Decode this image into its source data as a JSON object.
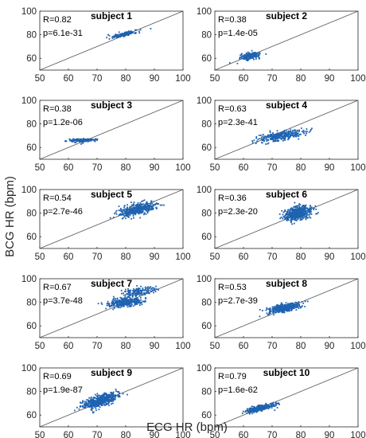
{
  "figure": {
    "xlabel": "ECG HR (bpm)",
    "ylabel": "BCG HR (bpm)",
    "xlim": [
      50,
      100
    ],
    "ylim": [
      50,
      100
    ],
    "xticks": [
      50,
      60,
      70,
      80,
      90,
      100
    ],
    "yticks": [
      60,
      80,
      100
    ],
    "marker_color": "#1f63b0",
    "line_color": "#555555"
  },
  "chart_data": [
    {
      "type": "scatter",
      "title": "subject 1",
      "r_text": "R=0.82",
      "p_text": "p=6.1e-31",
      "clusters": [
        {
          "cx": 79,
          "cy": 80,
          "sx": 2.5,
          "sy": 1.5,
          "r": 0.82,
          "n": 160
        }
      ],
      "identity_line": true
    },
    {
      "type": "scatter",
      "title": "subject 2",
      "r_text": "R=0.38",
      "p_text": "p=1.4e-05",
      "clusters": [
        {
          "cx": 62.5,
          "cy": 62,
          "sx": 1.7,
          "sy": 1.5,
          "r": 0.38,
          "n": 180
        }
      ],
      "identity_line": true
    },
    {
      "type": "scatter",
      "title": "subject 3",
      "r_text": "R=0.38",
      "p_text": "p=1.2e-06",
      "clusters": [
        {
          "cx": 65,
          "cy": 66,
          "sx": 2.5,
          "sy": 0.8,
          "r": 0.38,
          "n": 160
        }
      ],
      "identity_line": true
    },
    {
      "type": "scatter",
      "title": "subject 4",
      "r_text": "R=0.63",
      "p_text": "p=2.3e-41",
      "clusters": [
        {
          "cx": 73,
          "cy": 70,
          "sx": 4,
          "sy": 2.5,
          "r": 0.63,
          "n": 320
        }
      ],
      "identity_line": true
    },
    {
      "type": "scatter",
      "title": "subject 5",
      "r_text": "R=0.54",
      "p_text": "p=2.7e-46",
      "clusters": [
        {
          "cx": 84,
          "cy": 83,
          "sx": 3.2,
          "sy": 2.8,
          "r": 0.54,
          "n": 420
        }
      ],
      "identity_line": true
    },
    {
      "type": "scatter",
      "title": "subject 6",
      "r_text": "R=0.36",
      "p_text": "p=2.3e-20",
      "clusters": [
        {
          "cx": 79,
          "cy": 80,
          "sx": 2.4,
          "sy": 3,
          "r": 0.36,
          "n": 520
        }
      ],
      "identity_line": true
    },
    {
      "type": "scatter",
      "title": "subject 7",
      "r_text": "R=0.67",
      "p_text": "p=3.7e-48",
      "clusters": [
        {
          "cx": 80,
          "cy": 80,
          "sx": 3,
          "sy": 2,
          "r": 0.4,
          "n": 340
        },
        {
          "cx": 84,
          "cy": 89,
          "sx": 3,
          "sy": 2,
          "r": 0.4,
          "n": 150
        }
      ],
      "identity_line": true
    },
    {
      "type": "scatter",
      "title": "subject 8",
      "r_text": "R=0.53",
      "p_text": "p=2.7e-39",
      "clusters": [
        {
          "cx": 74,
          "cy": 75,
          "sx": 2.8,
          "sy": 2.2,
          "r": 0.53,
          "n": 340
        }
      ],
      "identity_line": true
    },
    {
      "type": "scatter",
      "title": "subject 9",
      "r_text": "R=0.69",
      "p_text": "p=1.9e-87",
      "clusters": [
        {
          "cx": 71,
          "cy": 72,
          "sx": 2.8,
          "sy": 3.2,
          "r": 0.69,
          "n": 560
        }
      ],
      "identity_line": true
    },
    {
      "type": "scatter",
      "title": "subject 10",
      "r_text": "R=0.79",
      "p_text": "p=1.6e-62",
      "clusters": [
        {
          "cx": 66,
          "cy": 66,
          "sx": 2.8,
          "sy": 2,
          "r": 0.79,
          "n": 300
        }
      ],
      "identity_line": true
    }
  ]
}
